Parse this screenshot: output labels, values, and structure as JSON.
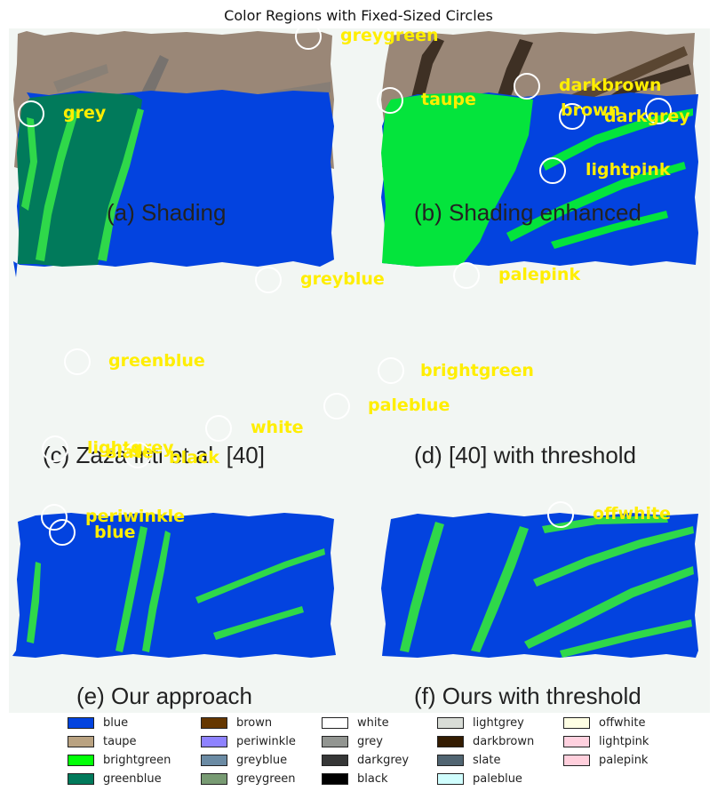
{
  "title": "Color Regions with Fixed-Sized Circles",
  "captions": {
    "a": "(a)  Shading",
    "b": "(b)  Shading enhanced",
    "c": "(c)  Zaza inti et al. [40]",
    "d": "(d)   [40] with threshold",
    "e": "(e)  Our approach",
    "f": "(f)  Ours with threshold"
  },
  "labels": {
    "greygreen": "greygreen",
    "grey": "grey",
    "taupe": "taupe",
    "darkbrown": "darkbrown",
    "brown": "brown",
    "darkgrey": "darkgrey",
    "lightpink": "lightpink",
    "greyblue": "greyblue",
    "palepink": "palepink",
    "greenblue": "greenblue",
    "brightgreen": "brightgreen",
    "paleblue": "paleblue",
    "white": "white",
    "lightgrey": "lightgrey",
    "slate": "slate",
    "black": "black",
    "periwinkle": "periwinkle",
    "blue": "blue",
    "offwhite": "offwhite"
  },
  "legend": [
    {
      "name": "blue",
      "color": "#0343df"
    },
    {
      "name": "taupe",
      "color": "#b9a281"
    },
    {
      "name": "brightgreen",
      "color": "#01ff07"
    },
    {
      "name": "greenblue",
      "color": "#017a5b"
    },
    {
      "name": "brown",
      "color": "#653700"
    },
    {
      "name": "periwinkle",
      "color": "#8e82fe"
    },
    {
      "name": "greyblue",
      "color": "#6b8ba4"
    },
    {
      "name": "greygreen",
      "color": "#789b73"
    },
    {
      "name": "white",
      "color": "#ffffff"
    },
    {
      "name": "grey",
      "color": "#929591"
    },
    {
      "name": "darkgrey",
      "color": "#363737"
    },
    {
      "name": "black",
      "color": "#000000"
    },
    {
      "name": "lightgrey",
      "color": "#d8dcd6"
    },
    {
      "name": "darkbrown",
      "color": "#341c02"
    },
    {
      "name": "slate",
      "color": "#516572"
    },
    {
      "name": "paleblue",
      "color": "#d0fefe"
    },
    {
      "name": "offwhite",
      "color": "#ffffe4"
    },
    {
      "name": "lightpink",
      "color": "#ffd1df"
    },
    {
      "name": "palepink",
      "color": "#ffcfdc"
    }
  ]
}
